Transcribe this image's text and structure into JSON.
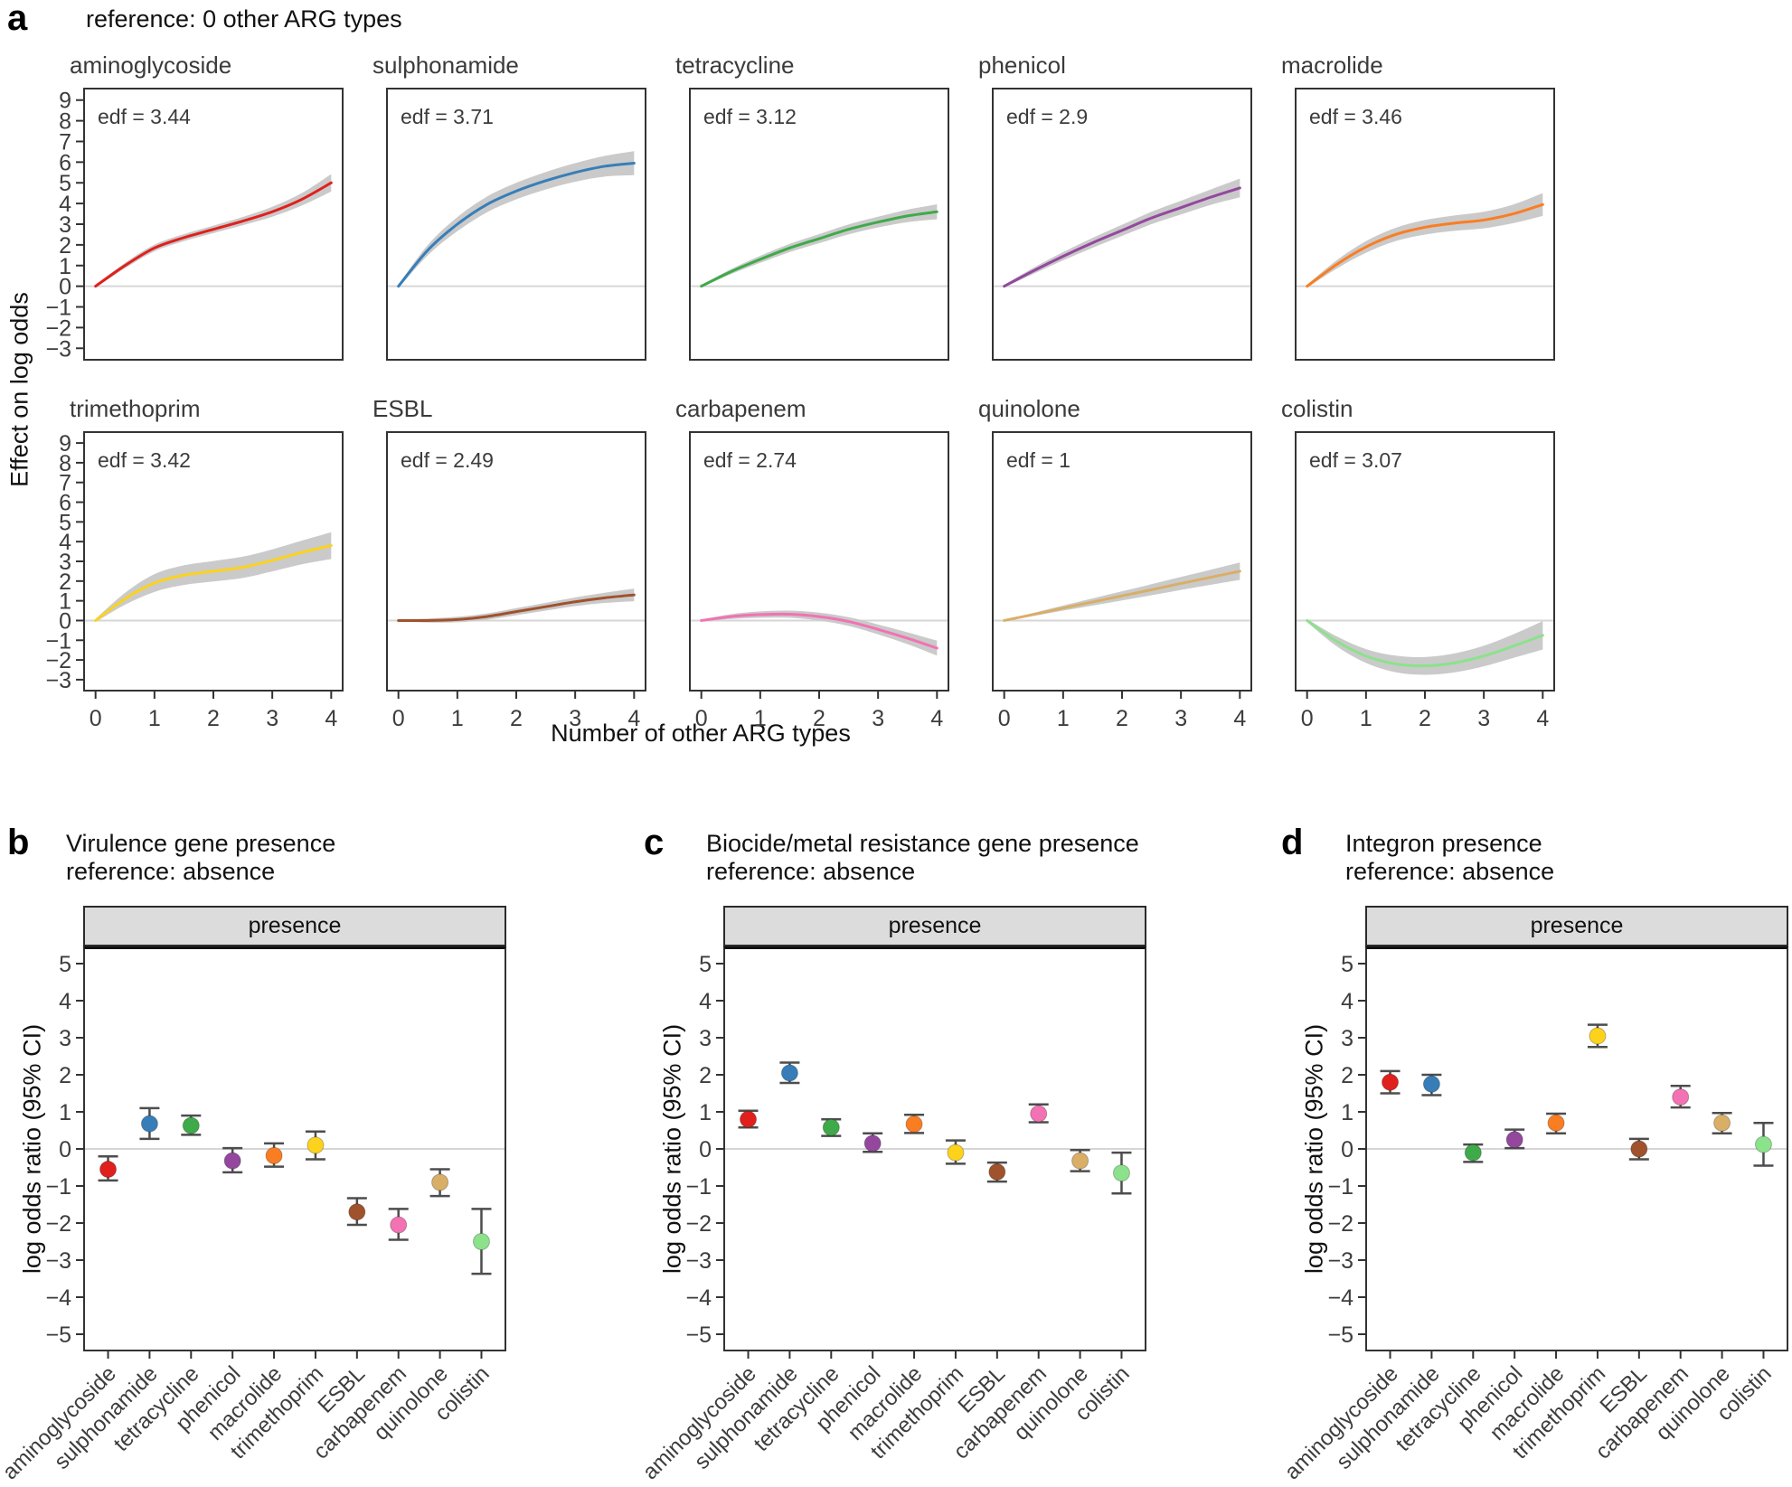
{
  "chart_data": [
    {
      "id": "a",
      "type": "line",
      "panel_letter": "a",
      "title": "reference: 0 other ARG types",
      "xlabel": "Number of other ARG types",
      "ylabel": "Effect on log odds",
      "legend": "none",
      "grid": "zero-line-only",
      "ci_band_color": "#cacaca",
      "x": [
        0,
        0.5,
        1,
        1.5,
        2,
        2.5,
        3,
        3.5,
        4
      ],
      "xticks": [
        0,
        1,
        2,
        3,
        4
      ],
      "yticks": [
        9,
        8,
        7,
        6,
        5,
        4,
        3,
        2,
        1,
        0,
        -1,
        -2,
        -3
      ],
      "xlim": [
        -0.21,
        4.21
      ],
      "ylim": [
        -3.6,
        9.6
      ],
      "facets": [
        {
          "name": "aminoglycoside",
          "edf": "edf = 3.44",
          "color": "#e0201c",
          "y": [
            0,
            1.0,
            1.85,
            2.35,
            2.75,
            3.15,
            3.6,
            4.2,
            5.0
          ],
          "ci_half": [
            0.06,
            0.13,
            0.16,
            0.17,
            0.18,
            0.2,
            0.24,
            0.3,
            0.42
          ]
        },
        {
          "name": "sulphonamide",
          "edf": "edf = 3.71",
          "color": "#377eb8",
          "y": [
            0,
            1.75,
            3.0,
            3.95,
            4.6,
            5.1,
            5.5,
            5.8,
            5.95
          ],
          "ci_half": [
            0.08,
            0.25,
            0.34,
            0.38,
            0.4,
            0.42,
            0.45,
            0.5,
            0.58
          ]
        },
        {
          "name": "tetracycline",
          "edf": "edf = 3.12",
          "color": "#3faa49",
          "y": [
            0,
            0.7,
            1.3,
            1.85,
            2.3,
            2.75,
            3.1,
            3.4,
            3.6
          ],
          "ci_half": [
            0.05,
            0.12,
            0.17,
            0.2,
            0.22,
            0.24,
            0.26,
            0.3,
            0.36
          ]
        },
        {
          "name": "phenicol",
          "edf": "edf = 2.9",
          "color": "#93489e",
          "y": [
            0,
            0.75,
            1.45,
            2.1,
            2.7,
            3.3,
            3.8,
            4.3,
            4.75
          ],
          "ci_half": [
            0.06,
            0.15,
            0.2,
            0.24,
            0.27,
            0.3,
            0.33,
            0.37,
            0.45
          ]
        },
        {
          "name": "macrolide",
          "edf": "edf = 3.46",
          "color": "#fb7d22",
          "y": [
            0,
            1.05,
            1.9,
            2.5,
            2.85,
            3.05,
            3.2,
            3.5,
            3.95
          ],
          "ci_half": [
            0.07,
            0.2,
            0.28,
            0.32,
            0.35,
            0.37,
            0.4,
            0.45,
            0.55
          ]
        },
        {
          "name": "trimethoprim",
          "edf": "edf = 3.42",
          "color": "#fcd21c",
          "y": [
            0,
            1.1,
            1.9,
            2.3,
            2.5,
            2.7,
            3.05,
            3.45,
            3.8
          ],
          "ci_half": [
            0.08,
            0.3,
            0.45,
            0.5,
            0.52,
            0.54,
            0.56,
            0.6,
            0.68
          ]
        },
        {
          "name": "ESBL",
          "edf": "edf = 2.49",
          "color": "#a0522d",
          "y": [
            0,
            0.0,
            0.05,
            0.2,
            0.45,
            0.7,
            0.95,
            1.15,
            1.3
          ],
          "ci_half": [
            0.04,
            0.1,
            0.14,
            0.16,
            0.18,
            0.2,
            0.22,
            0.26,
            0.32
          ]
        },
        {
          "name": "carbapenem",
          "edf": "edf = 2.74",
          "color": "#f272b4",
          "y": [
            0,
            0.2,
            0.3,
            0.32,
            0.2,
            -0.05,
            -0.45,
            -0.9,
            -1.4
          ],
          "ci_half": [
            0.05,
            0.12,
            0.16,
            0.18,
            0.2,
            0.22,
            0.25,
            0.3,
            0.38
          ]
        },
        {
          "name": "quinolone",
          "edf": "edf = 1",
          "color": "#d9ae66",
          "y": [
            0,
            0.31,
            0.63,
            0.94,
            1.25,
            1.56,
            1.88,
            2.19,
            2.5
          ],
          "ci_half": [
            0.03,
            0.08,
            0.13,
            0.18,
            0.23,
            0.28,
            0.33,
            0.38,
            0.44
          ]
        },
        {
          "name": "colistin",
          "edf": "edf = 3.07",
          "color": "#8be28b",
          "y": [
            0,
            -1.05,
            -1.8,
            -2.2,
            -2.3,
            -2.15,
            -1.8,
            -1.3,
            -0.75
          ],
          "ci_half": [
            0.08,
            0.25,
            0.35,
            0.42,
            0.45,
            0.48,
            0.52,
            0.6,
            0.72
          ]
        }
      ]
    },
    {
      "id": "b",
      "type": "pointrange",
      "panel_letter": "b",
      "title_line1": "Virulence gene presence",
      "title_line2": "reference: absence",
      "strip_label": "presence",
      "ylabel": "log odds ratio (95% CI)",
      "yticks": [
        5,
        4,
        3,
        2,
        1,
        0,
        -1,
        -2,
        -3,
        -4,
        -5
      ],
      "ylim": [
        -5.46,
        5.46
      ],
      "points": [
        {
          "category": "aminoglycoside",
          "color": "#e0201c",
          "estimate": -0.55,
          "ci_low": -0.85,
          "ci_high": -0.2
        },
        {
          "category": "sulphonamide",
          "color": "#377eb8",
          "estimate": 0.68,
          "ci_low": 0.27,
          "ci_high": 1.1
        },
        {
          "category": "tetracycline",
          "color": "#3faa49",
          "estimate": 0.63,
          "ci_low": 0.38,
          "ci_high": 0.9
        },
        {
          "category": "phenicol",
          "color": "#93489e",
          "estimate": -0.32,
          "ci_low": -0.63,
          "ci_high": 0.02
        },
        {
          "category": "macrolide",
          "color": "#fb7d22",
          "estimate": -0.18,
          "ci_low": -0.48,
          "ci_high": 0.15
        },
        {
          "category": "trimethoprim",
          "color": "#fcd21c",
          "estimate": 0.1,
          "ci_low": -0.28,
          "ci_high": 0.47
        },
        {
          "category": "ESBL",
          "color": "#a0522d",
          "estimate": -1.7,
          "ci_low": -2.05,
          "ci_high": -1.33
        },
        {
          "category": "carbapenem",
          "color": "#f272b4",
          "estimate": -2.05,
          "ci_low": -2.45,
          "ci_high": -1.62
        },
        {
          "category": "quinolone",
          "color": "#d9ae66",
          "estimate": -0.9,
          "ci_low": -1.27,
          "ci_high": -0.55
        },
        {
          "category": "colistin",
          "color": "#8be28b",
          "estimate": -2.5,
          "ci_low": -3.37,
          "ci_high": -1.62
        }
      ]
    },
    {
      "id": "c",
      "type": "pointrange",
      "panel_letter": "c",
      "title_line1": "Biocide/metal resistance gene presence",
      "title_line2": "reference: absence",
      "strip_label": "presence",
      "ylabel": "log odds ratio (95% CI)",
      "yticks": [
        5,
        4,
        3,
        2,
        1,
        0,
        -1,
        -2,
        -3,
        -4,
        -5
      ],
      "ylim": [
        -5.46,
        5.46
      ],
      "points": [
        {
          "category": "aminoglycoside",
          "color": "#e0201c",
          "estimate": 0.8,
          "ci_low": 0.58,
          "ci_high": 1.03
        },
        {
          "category": "sulphonamide",
          "color": "#377eb8",
          "estimate": 2.05,
          "ci_low": 1.78,
          "ci_high": 2.33
        },
        {
          "category": "tetracycline",
          "color": "#3faa49",
          "estimate": 0.58,
          "ci_low": 0.35,
          "ci_high": 0.8
        },
        {
          "category": "phenicol",
          "color": "#93489e",
          "estimate": 0.15,
          "ci_low": -0.08,
          "ci_high": 0.42
        },
        {
          "category": "macrolide",
          "color": "#fb7d22",
          "estimate": 0.67,
          "ci_low": 0.43,
          "ci_high": 0.92
        },
        {
          "category": "trimethoprim",
          "color": "#fcd21c",
          "estimate": -0.1,
          "ci_low": -0.4,
          "ci_high": 0.23
        },
        {
          "category": "ESBL",
          "color": "#a0522d",
          "estimate": -0.62,
          "ci_low": -0.88,
          "ci_high": -0.37
        },
        {
          "category": "carbapenem",
          "color": "#f272b4",
          "estimate": 0.95,
          "ci_low": 0.72,
          "ci_high": 1.2
        },
        {
          "category": "quinolone",
          "color": "#d9ae66",
          "estimate": -0.32,
          "ci_low": -0.6,
          "ci_high": -0.03
        },
        {
          "category": "colistin",
          "color": "#8be28b",
          "estimate": -0.65,
          "ci_low": -1.2,
          "ci_high": -0.1
        }
      ]
    },
    {
      "id": "d",
      "type": "pointrange",
      "panel_letter": "d",
      "title_line1": "Integron presence",
      "title_line2": "reference: absence",
      "strip_label": "presence",
      "ylabel": "log odds ratio (95% CI)",
      "yticks": [
        5,
        4,
        3,
        2,
        1,
        0,
        -1,
        -2,
        -3,
        -4,
        -5
      ],
      "ylim": [
        -5.46,
        5.46
      ],
      "points": [
        {
          "category": "aminoglycoside",
          "color": "#e0201c",
          "estimate": 1.8,
          "ci_low": 1.5,
          "ci_high": 2.1
        },
        {
          "category": "sulphonamide",
          "color": "#377eb8",
          "estimate": 1.75,
          "ci_low": 1.45,
          "ci_high": 2.0
        },
        {
          "category": "tetracycline",
          "color": "#3faa49",
          "estimate": -0.1,
          "ci_low": -0.35,
          "ci_high": 0.12
        },
        {
          "category": "phenicol",
          "color": "#93489e",
          "estimate": 0.25,
          "ci_low": 0.02,
          "ci_high": 0.52
        },
        {
          "category": "macrolide",
          "color": "#fb7d22",
          "estimate": 0.7,
          "ci_low": 0.42,
          "ci_high": 0.95
        },
        {
          "category": "trimethoprim",
          "color": "#fcd21c",
          "estimate": 3.05,
          "ci_low": 2.75,
          "ci_high": 3.35
        },
        {
          "category": "ESBL",
          "color": "#a0522d",
          "estimate": 0.0,
          "ci_low": -0.28,
          "ci_high": 0.27
        },
        {
          "category": "carbapenem",
          "color": "#f272b4",
          "estimate": 1.4,
          "ci_low": 1.12,
          "ci_high": 1.7
        },
        {
          "category": "quinolone",
          "color": "#d9ae66",
          "estimate": 0.7,
          "ci_low": 0.42,
          "ci_high": 0.97
        },
        {
          "category": "colistin",
          "color": "#8be28b",
          "estimate": 0.12,
          "ci_low": -0.45,
          "ci_high": 0.7
        }
      ]
    }
  ]
}
